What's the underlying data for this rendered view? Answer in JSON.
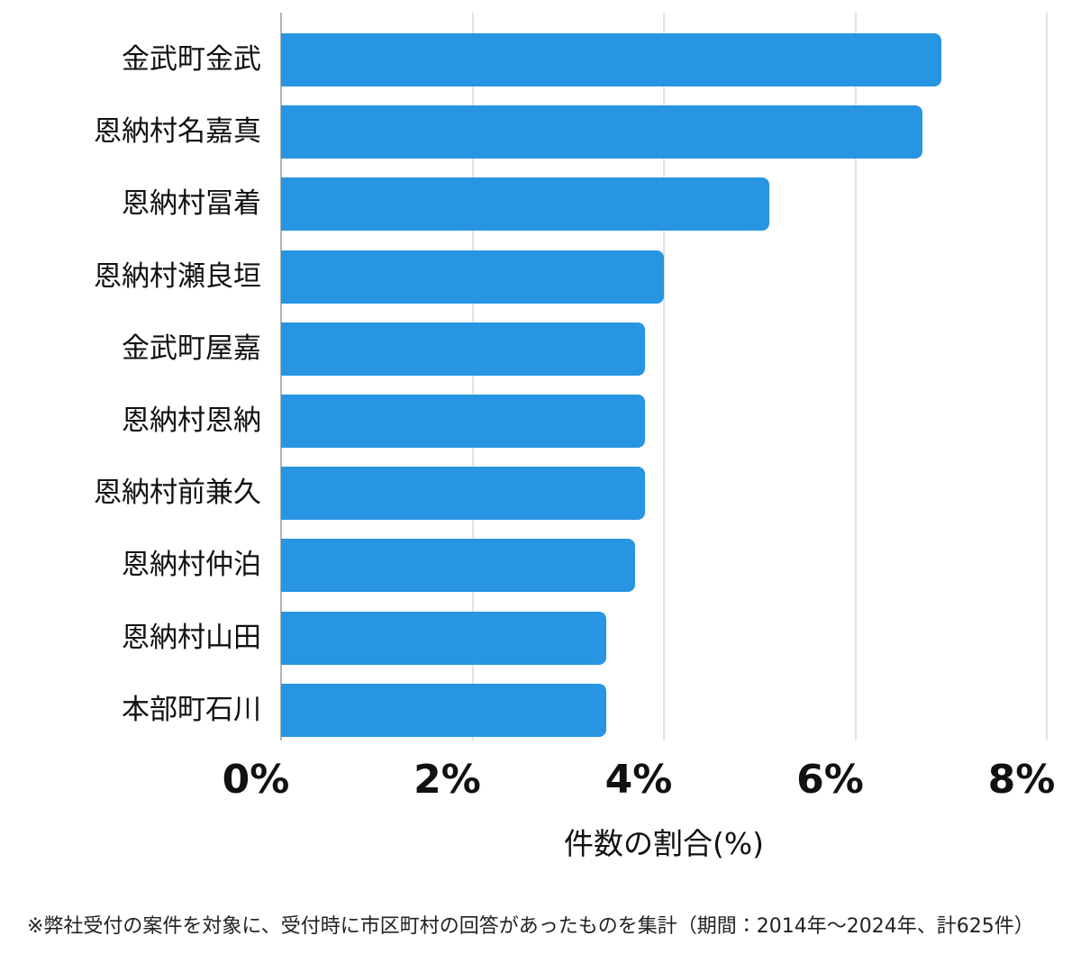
{
  "chart_data": {
    "type": "bar",
    "orientation": "horizontal",
    "title": "",
    "xlabel": "件数の割合(%)",
    "ylabel": "",
    "categories": [
      "金武町金武",
      "恩納村名嘉真",
      "恩納村冨着",
      "恩納村瀬良垣",
      "金武町屋嘉",
      "恩納村恩納",
      "恩納村前兼久",
      "恩納村仲泊",
      "恩納村山田",
      "本部町石川"
    ],
    "values": [
      6.9,
      6.7,
      5.1,
      4.0,
      3.8,
      3.8,
      3.8,
      3.7,
      3.4,
      3.4
    ],
    "xlim": [
      0,
      8
    ],
    "x_ticks": [
      "0%",
      "2%",
      "4%",
      "6%",
      "8%"
    ],
    "x_tick_values": [
      0,
      2,
      4,
      6,
      8
    ],
    "grid": true,
    "legend": false,
    "bar_color": "#2795e2"
  },
  "footnote": "※弊社受付の案件を対象に、受付時に市区町村の回答があったものを集計（期間：2014年～2024年、計625件）",
  "colors": {
    "bar": "#2795e2",
    "gridline": "#e2e2e2",
    "axis_line": "#b3b3b3",
    "text": "#111111"
  }
}
